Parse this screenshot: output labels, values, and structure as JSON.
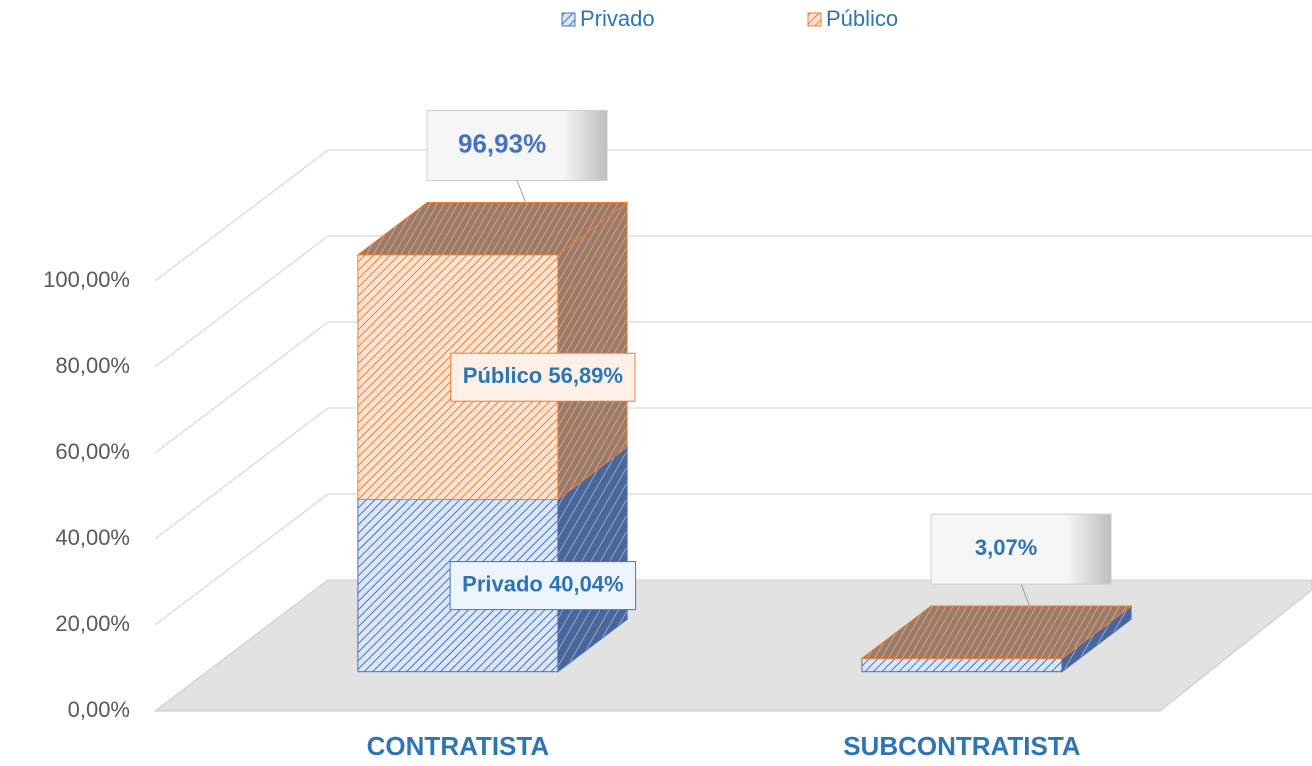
{
  "chart_data": {
    "type": "bar3d_stacked",
    "categories": [
      "CONTRATISTA",
      "SUBCONTRATISTA"
    ],
    "series": [
      {
        "name": "Privado",
        "color": "#4472c4",
        "values": [
          40.04,
          3.07
        ],
        "value_labels": [
          "Privado 40,04%",
          null
        ]
      },
      {
        "name": "Público",
        "color": "#ed7d31",
        "values": [
          56.89,
          0
        ],
        "value_labels": [
          "Público 56,89%",
          null
        ]
      }
    ],
    "totals": {
      "values": [
        96.93,
        3.07
      ],
      "value_labels": [
        "96,93%",
        "3,07%"
      ]
    },
    "ylim": [
      0,
      100
    ],
    "yticks": [
      {
        "value": 0,
        "label": "0,00%"
      },
      {
        "value": 20,
        "label": "20,00%"
      },
      {
        "value": 40,
        "label": "40,00%"
      },
      {
        "value": 60,
        "label": "60,00%"
      },
      {
        "value": 80,
        "label": "80,00%"
      },
      {
        "value": 100,
        "label": "100,00%"
      }
    ],
    "grid": true,
    "legend": "top"
  }
}
